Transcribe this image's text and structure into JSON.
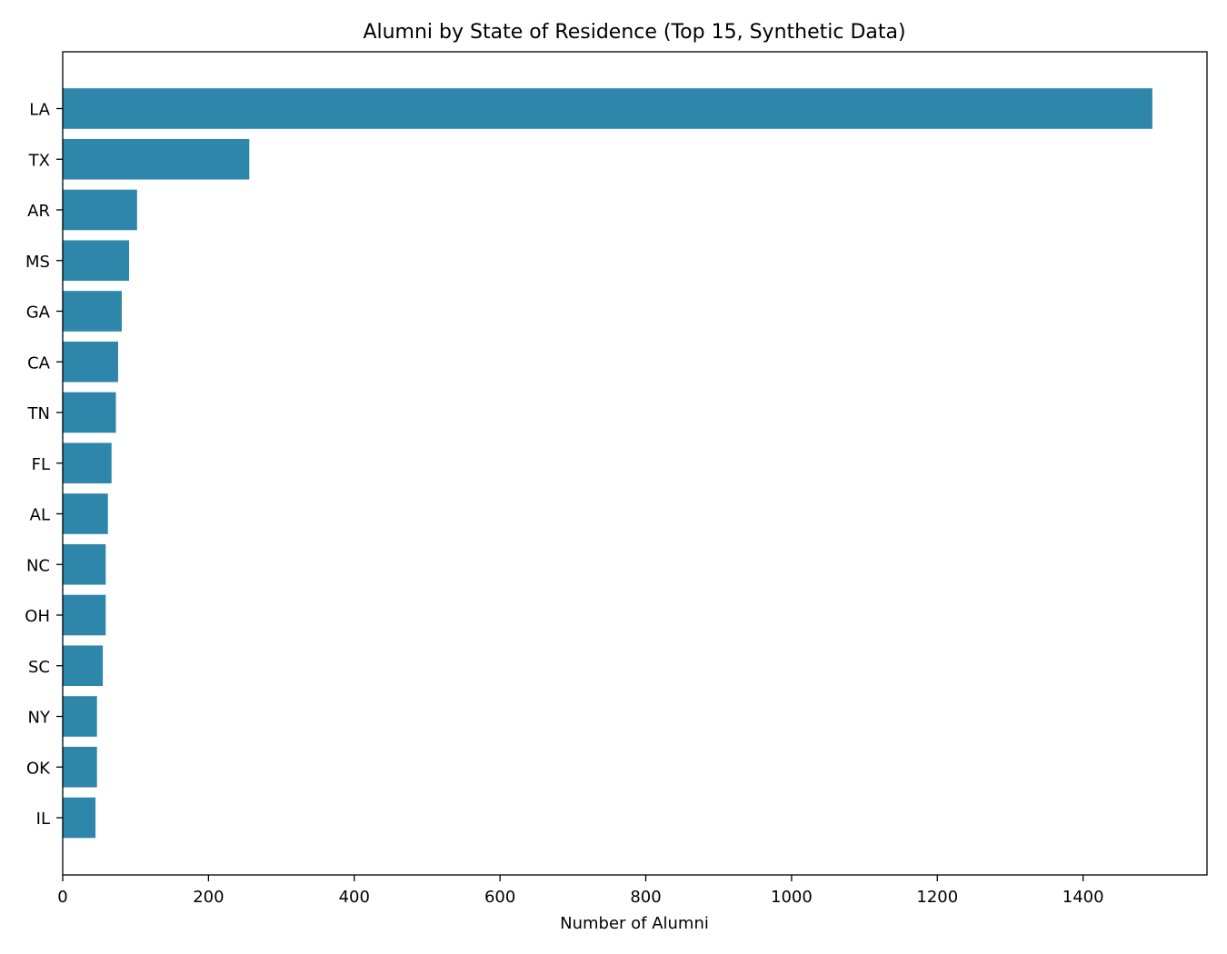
{
  "chart_data": {
    "type": "bar",
    "orientation": "horizontal",
    "title": "Alumni by State of Residence (Top 15, Synthetic Data)",
    "xlabel": "Number of Alumni",
    "ylabel": "",
    "categories": [
      "LA",
      "TX",
      "AR",
      "MS",
      "GA",
      "CA",
      "TN",
      "FL",
      "AL",
      "NC",
      "OH",
      "SC",
      "NY",
      "OK",
      "IL"
    ],
    "values": [
      1495,
      256,
      102,
      91,
      81,
      76,
      73,
      67,
      62,
      59,
      59,
      55,
      47,
      47,
      45
    ],
    "xlim": [
      0,
      1570
    ],
    "xticks": [
      0,
      200,
      400,
      600,
      800,
      1000,
      1200,
      1400
    ],
    "grid": false,
    "legend": "none",
    "bar_color": "#2e86ab"
  }
}
